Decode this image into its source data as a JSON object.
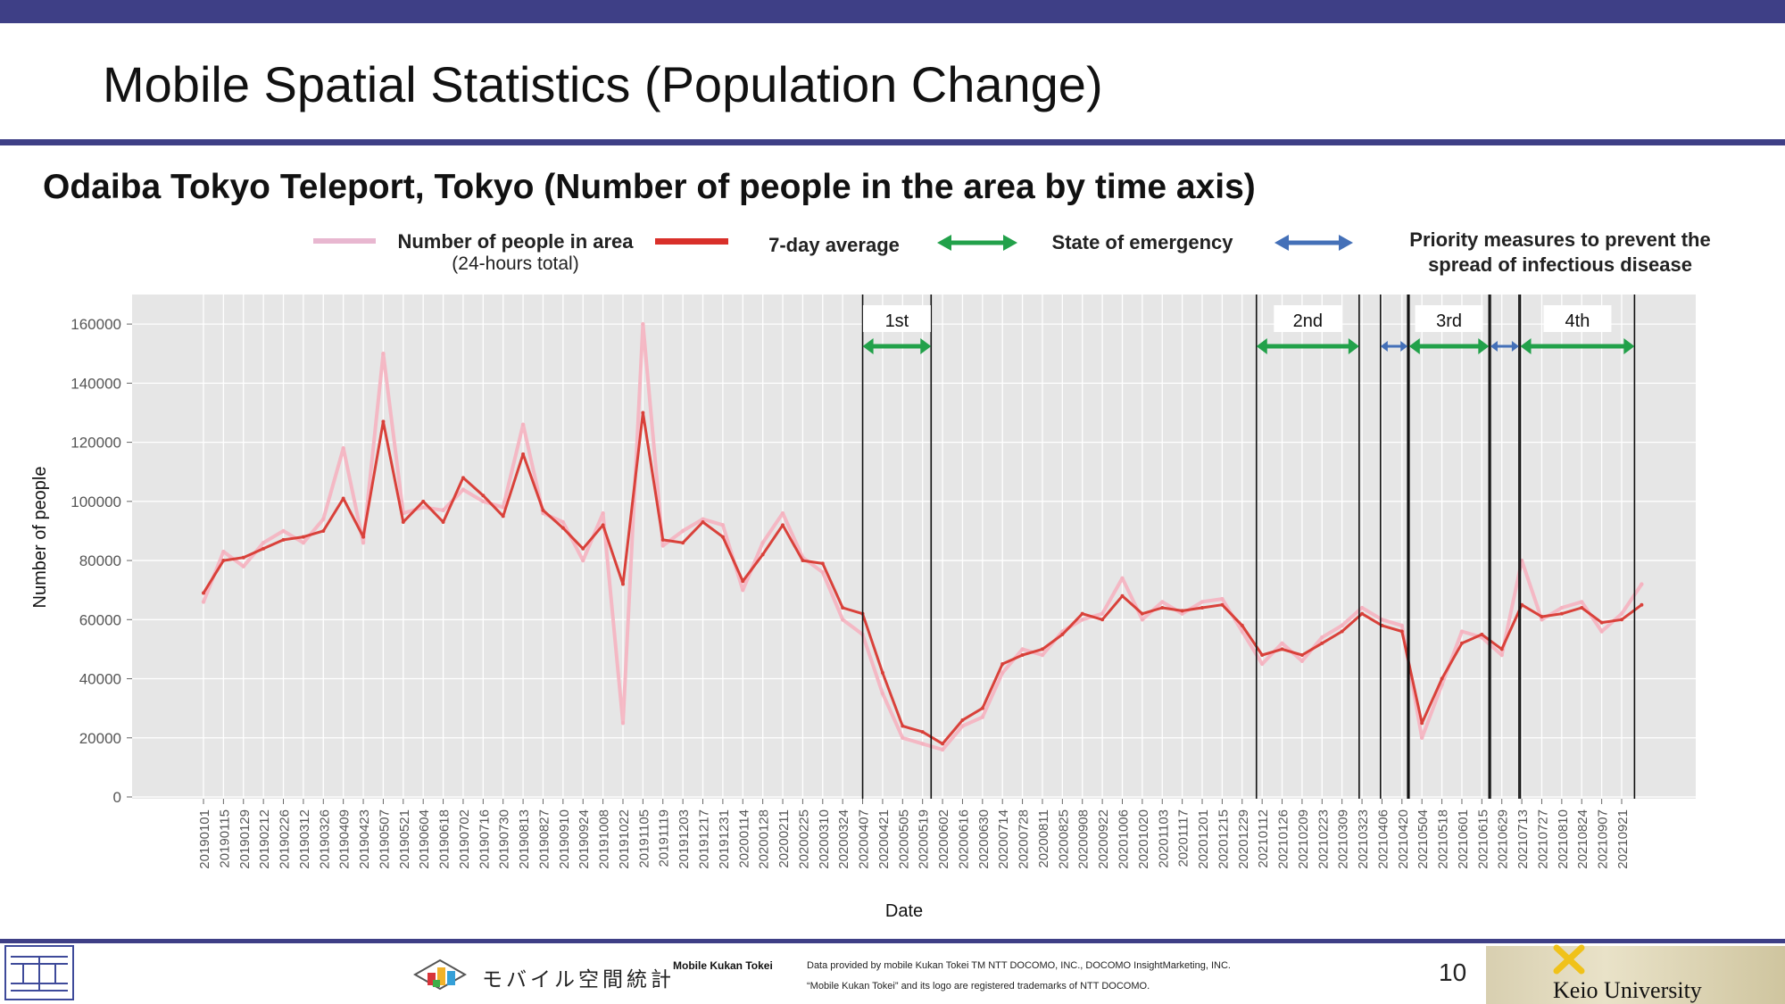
{
  "slide": {
    "title": "Mobile Spatial Statistics (Population Change)",
    "subtitle": "Odaiba Tokyo Teleport, Tokyo (Number of people in the area by time axis)",
    "page_number": "10"
  },
  "legend": {
    "daily_label": "Number of people in area",
    "daily_sublabel": "(24-hours total)",
    "avg_label": "7-day average",
    "emergency_label": "State of emergency",
    "priority_label_line1": "Priority measures to prevent the",
    "priority_label_line2": "spread of infectious disease"
  },
  "colors": {
    "brand_bar": "#3e3f86",
    "daily_series": "#f5b3c0",
    "avg_series": "#d9413a",
    "emergency_arrow": "#22a14a",
    "priority_arrow": "#4470b8",
    "plot_bg": "#e6e6e6"
  },
  "chart_data": {
    "type": "line",
    "xlabel": "Date",
    "ylabel": "Number of people",
    "ylim": [
      0,
      170000
    ],
    "yticks": [
      0,
      20000,
      40000,
      60000,
      80000,
      100000,
      120000,
      140000,
      160000
    ],
    "grid": true,
    "x_tick_labels": [
      "20190101",
      "20190115",
      "20190129",
      "20190212",
      "20190226",
      "20190312",
      "20190326",
      "20190409",
      "20190423",
      "20190507",
      "20190521",
      "20190604",
      "20190618",
      "20190702",
      "20190716",
      "20190730",
      "20190813",
      "20190827",
      "20190910",
      "20190924",
      "20191008",
      "20191022",
      "20191105",
      "20191119",
      "20191203",
      "20191217",
      "20191231",
      "20200114",
      "20200128",
      "20200211",
      "20200225",
      "20200310",
      "20200324",
      "20200407",
      "20200421",
      "20200505",
      "20200519",
      "20200602",
      "20200616",
      "20200630",
      "20200714",
      "20200728",
      "20200811",
      "20200825",
      "20200908",
      "20200922",
      "20201006",
      "20201020",
      "20201103",
      "20201117",
      "20201201",
      "20201215",
      "20201229",
      "20210112",
      "20210126",
      "20210209",
      "20210223",
      "20210309",
      "20210323",
      "20210406",
      "20210420",
      "20210504",
      "20210518",
      "20210601",
      "20210615",
      "20210629",
      "20210713",
      "20210727",
      "20210810",
      "20210824",
      "20210907",
      "20210921"
    ],
    "series": [
      {
        "name": "7-day average",
        "values": [
          69000,
          80000,
          81000,
          84000,
          87000,
          88000,
          90000,
          101000,
          88000,
          127000,
          93000,
          100000,
          93000,
          108000,
          102000,
          95000,
          116000,
          97000,
          91000,
          84000,
          92000,
          72000,
          130000,
          87000,
          86000,
          93000,
          88000,
          73000,
          82000,
          92000,
          80000,
          79000,
          64000,
          62000,
          42000,
          24000,
          22000,
          18000,
          26000,
          30000,
          45000,
          48000,
          50000,
          55000,
          62000,
          60000,
          68000,
          62000,
          64000,
          63000,
          64000,
          65000,
          58000,
          48000,
          50000,
          48000,
          52000,
          56000,
          62000,
          58000,
          56000,
          25000,
          40000,
          52000,
          55000,
          50000,
          65000,
          61000,
          62000,
          64000,
          59000,
          60000,
          65000
        ]
      },
      {
        "name": "Number of people in area",
        "values": [
          66000,
          83000,
          78000,
          86000,
          90000,
          86000,
          94000,
          118000,
          86000,
          150000,
          96000,
          98000,
          97000,
          104000,
          100000,
          98000,
          126000,
          96000,
          93000,
          80000,
          96000,
          25000,
          160000,
          85000,
          90000,
          94000,
          92000,
          70000,
          86000,
          96000,
          81000,
          76000,
          60000,
          55000,
          35000,
          20000,
          18000,
          16000,
          24000,
          27000,
          42000,
          50000,
          48000,
          56000,
          60000,
          62000,
          74000,
          60000,
          66000,
          62000,
          66000,
          67000,
          56000,
          45000,
          52000,
          46000,
          54000,
          58000,
          64000,
          60000,
          58000,
          20000,
          38000,
          56000,
          54000,
          48000,
          80000,
          60000,
          64000,
          66000,
          56000,
          62000,
          72000
        ]
      }
    ],
    "annotations": [
      {
        "label": "1st",
        "kind": "State of emergency",
        "start": "20200407",
        "end": "20200525"
      },
      {
        "label": "2nd",
        "kind": "State of emergency",
        "start": "20210108",
        "end": "20210321"
      },
      {
        "label": "",
        "kind": "Priority measures to prevent the spread of infectious disease",
        "start": "20210405",
        "end": "20210424"
      },
      {
        "label": "3rd",
        "kind": "State of emergency",
        "start": "20210425",
        "end": "20210620"
      },
      {
        "label": "",
        "kind": "Priority measures to prevent the spread of infectious disease",
        "start": "20210621",
        "end": "20210711"
      },
      {
        "label": "4th",
        "kind": "State of emergency",
        "start": "20210712",
        "end": "20210930"
      }
    ]
  },
  "footer": {
    "logo_jp": "モバイル空間統計",
    "logo_en": "Mobile Kukan Tokei",
    "credit_line1": "Data provided by mobile Kukan Tokei TM NTT DOCOMO, INC., DOCOMO InsightMarketing, INC.",
    "credit_line2": "“Mobile Kukan Tokei” and its logo are registered trademarks of NTT DOCOMO.",
    "university": "Keio University"
  }
}
